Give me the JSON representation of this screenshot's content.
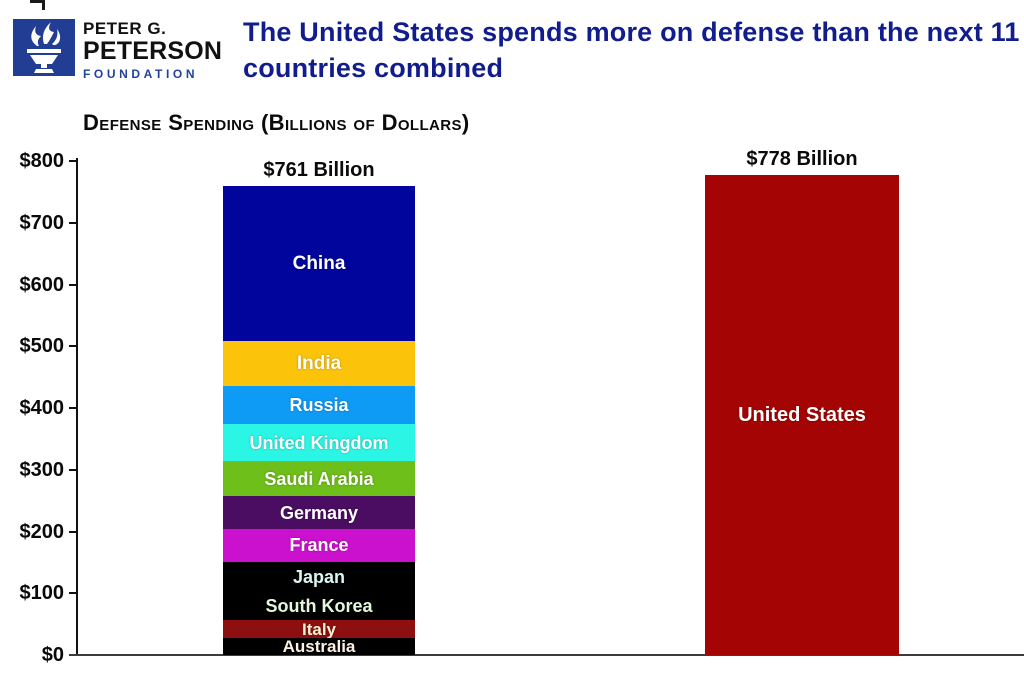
{
  "header": {
    "brand": {
      "line1": "PETER G.",
      "line2": "PETERSON",
      "line3": "FOUNDATION"
    },
    "title": "The United States spends more on defense than the next 11 countries combined"
  },
  "chart_data": {
    "type": "bar",
    "subtype": "stacked_comparison",
    "title": "Defense Spending (Billions of Dollars)",
    "ylabel": "",
    "xlabel": "",
    "unit": "billions of US dollars",
    "ylim": [
      0,
      800
    ],
    "grid": false,
    "yticks": [
      {
        "value": 800,
        "label": "$800"
      },
      {
        "value": 700,
        "label": "$700"
      },
      {
        "value": 600,
        "label": "$600"
      },
      {
        "value": 500,
        "label": "$500"
      },
      {
        "value": 400,
        "label": "$400"
      },
      {
        "value": 300,
        "label": "$300"
      },
      {
        "value": 200,
        "label": "$200"
      },
      {
        "value": 100,
        "label": "$100"
      },
      {
        "value": 0,
        "label": "$0"
      }
    ],
    "bars": [
      {
        "name": "next-11-countries-combined",
        "total": 761,
        "total_label": "$761 Billion",
        "segments": [
          {
            "label": "China",
            "value": 252,
            "color": "#01059B",
            "label_color": "#FFFFFF"
          },
          {
            "label": "India",
            "value": 72.9,
            "color": "#FCC30B",
            "label_color": "#FFFFFF"
          },
          {
            "label": "Russia",
            "value": 61.7,
            "color": "#0D9BF6",
            "label_color": "#FFFFFF"
          },
          {
            "label": "United Kingdom",
            "value": 59.2,
            "color": "#2BF5E4",
            "label_color": "#FFFFFF"
          },
          {
            "label": "Saudi Arabia",
            "value": 57.5,
            "color": "#6FBF1A",
            "label_color": "#FFFFFF"
          },
          {
            "label": "Germany",
            "value": 52.8,
            "color": "#4A0D62",
            "label_color": "#FFFFFF"
          },
          {
            "label": "France",
            "value": 52.7,
            "color": "#CB10CE",
            "label_color": "#FFFFFF"
          },
          {
            "label": "Japan",
            "value": 49.1,
            "color": "#000000",
            "label_color": "#D9F6F4"
          },
          {
            "label": "South Korea",
            "value": 45.7,
            "color": "#000000",
            "label_color": "#E4F6DC"
          },
          {
            "label": "Italy",
            "value": 28.9,
            "color": "#8E0F10",
            "label_color": "#FBF2D0"
          },
          {
            "label": "Australia",
            "value": 27.5,
            "color": "#000000",
            "label_color": "#FCEFE3"
          }
        ]
      },
      {
        "name": "united-states",
        "total": 778,
        "total_label": "$778 Billion",
        "segments": [
          {
            "label": "United States",
            "value": 778,
            "color": "#A40404",
            "label_color": "#FFFFFF"
          }
        ]
      }
    ]
  }
}
